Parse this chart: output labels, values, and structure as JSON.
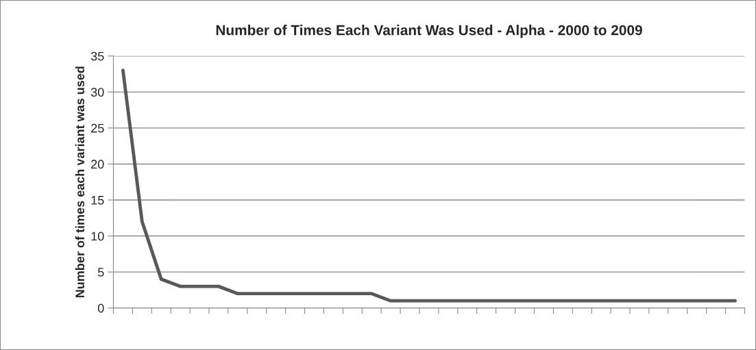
{
  "chart_data": {
    "type": "line",
    "title": "Number of Times Each Variant Was Used - Alpha - 2000 to 2009",
    "ylabel": "Number of times each variant was used",
    "categories": [
      null,
      null,
      null,
      null,
      null,
      null,
      null,
      null,
      null,
      null,
      null,
      null,
      null,
      null,
      null,
      null,
      null,
      null,
      null,
      null,
      null,
      null,
      null,
      null,
      null,
      null,
      null,
      null,
      null,
      null,
      null,
      null,
      null
    ],
    "series": [
      {
        "color": "#595959",
        "values": [
          33,
          12,
          4,
          3,
          3,
          3,
          2,
          2,
          2,
          2,
          2,
          2,
          2,
          2,
          1,
          1,
          1,
          1,
          1,
          1,
          1,
          1,
          1,
          1,
          1,
          1,
          1,
          1,
          1,
          1,
          1,
          1,
          1
        ]
      }
    ],
    "ylim": [
      0,
      35
    ],
    "yticks": [
      0,
      5,
      10,
      15,
      20,
      25,
      30,
      35
    ],
    "grid": "y",
    "legend": false,
    "marker": "none",
    "line_style": "solid"
  }
}
